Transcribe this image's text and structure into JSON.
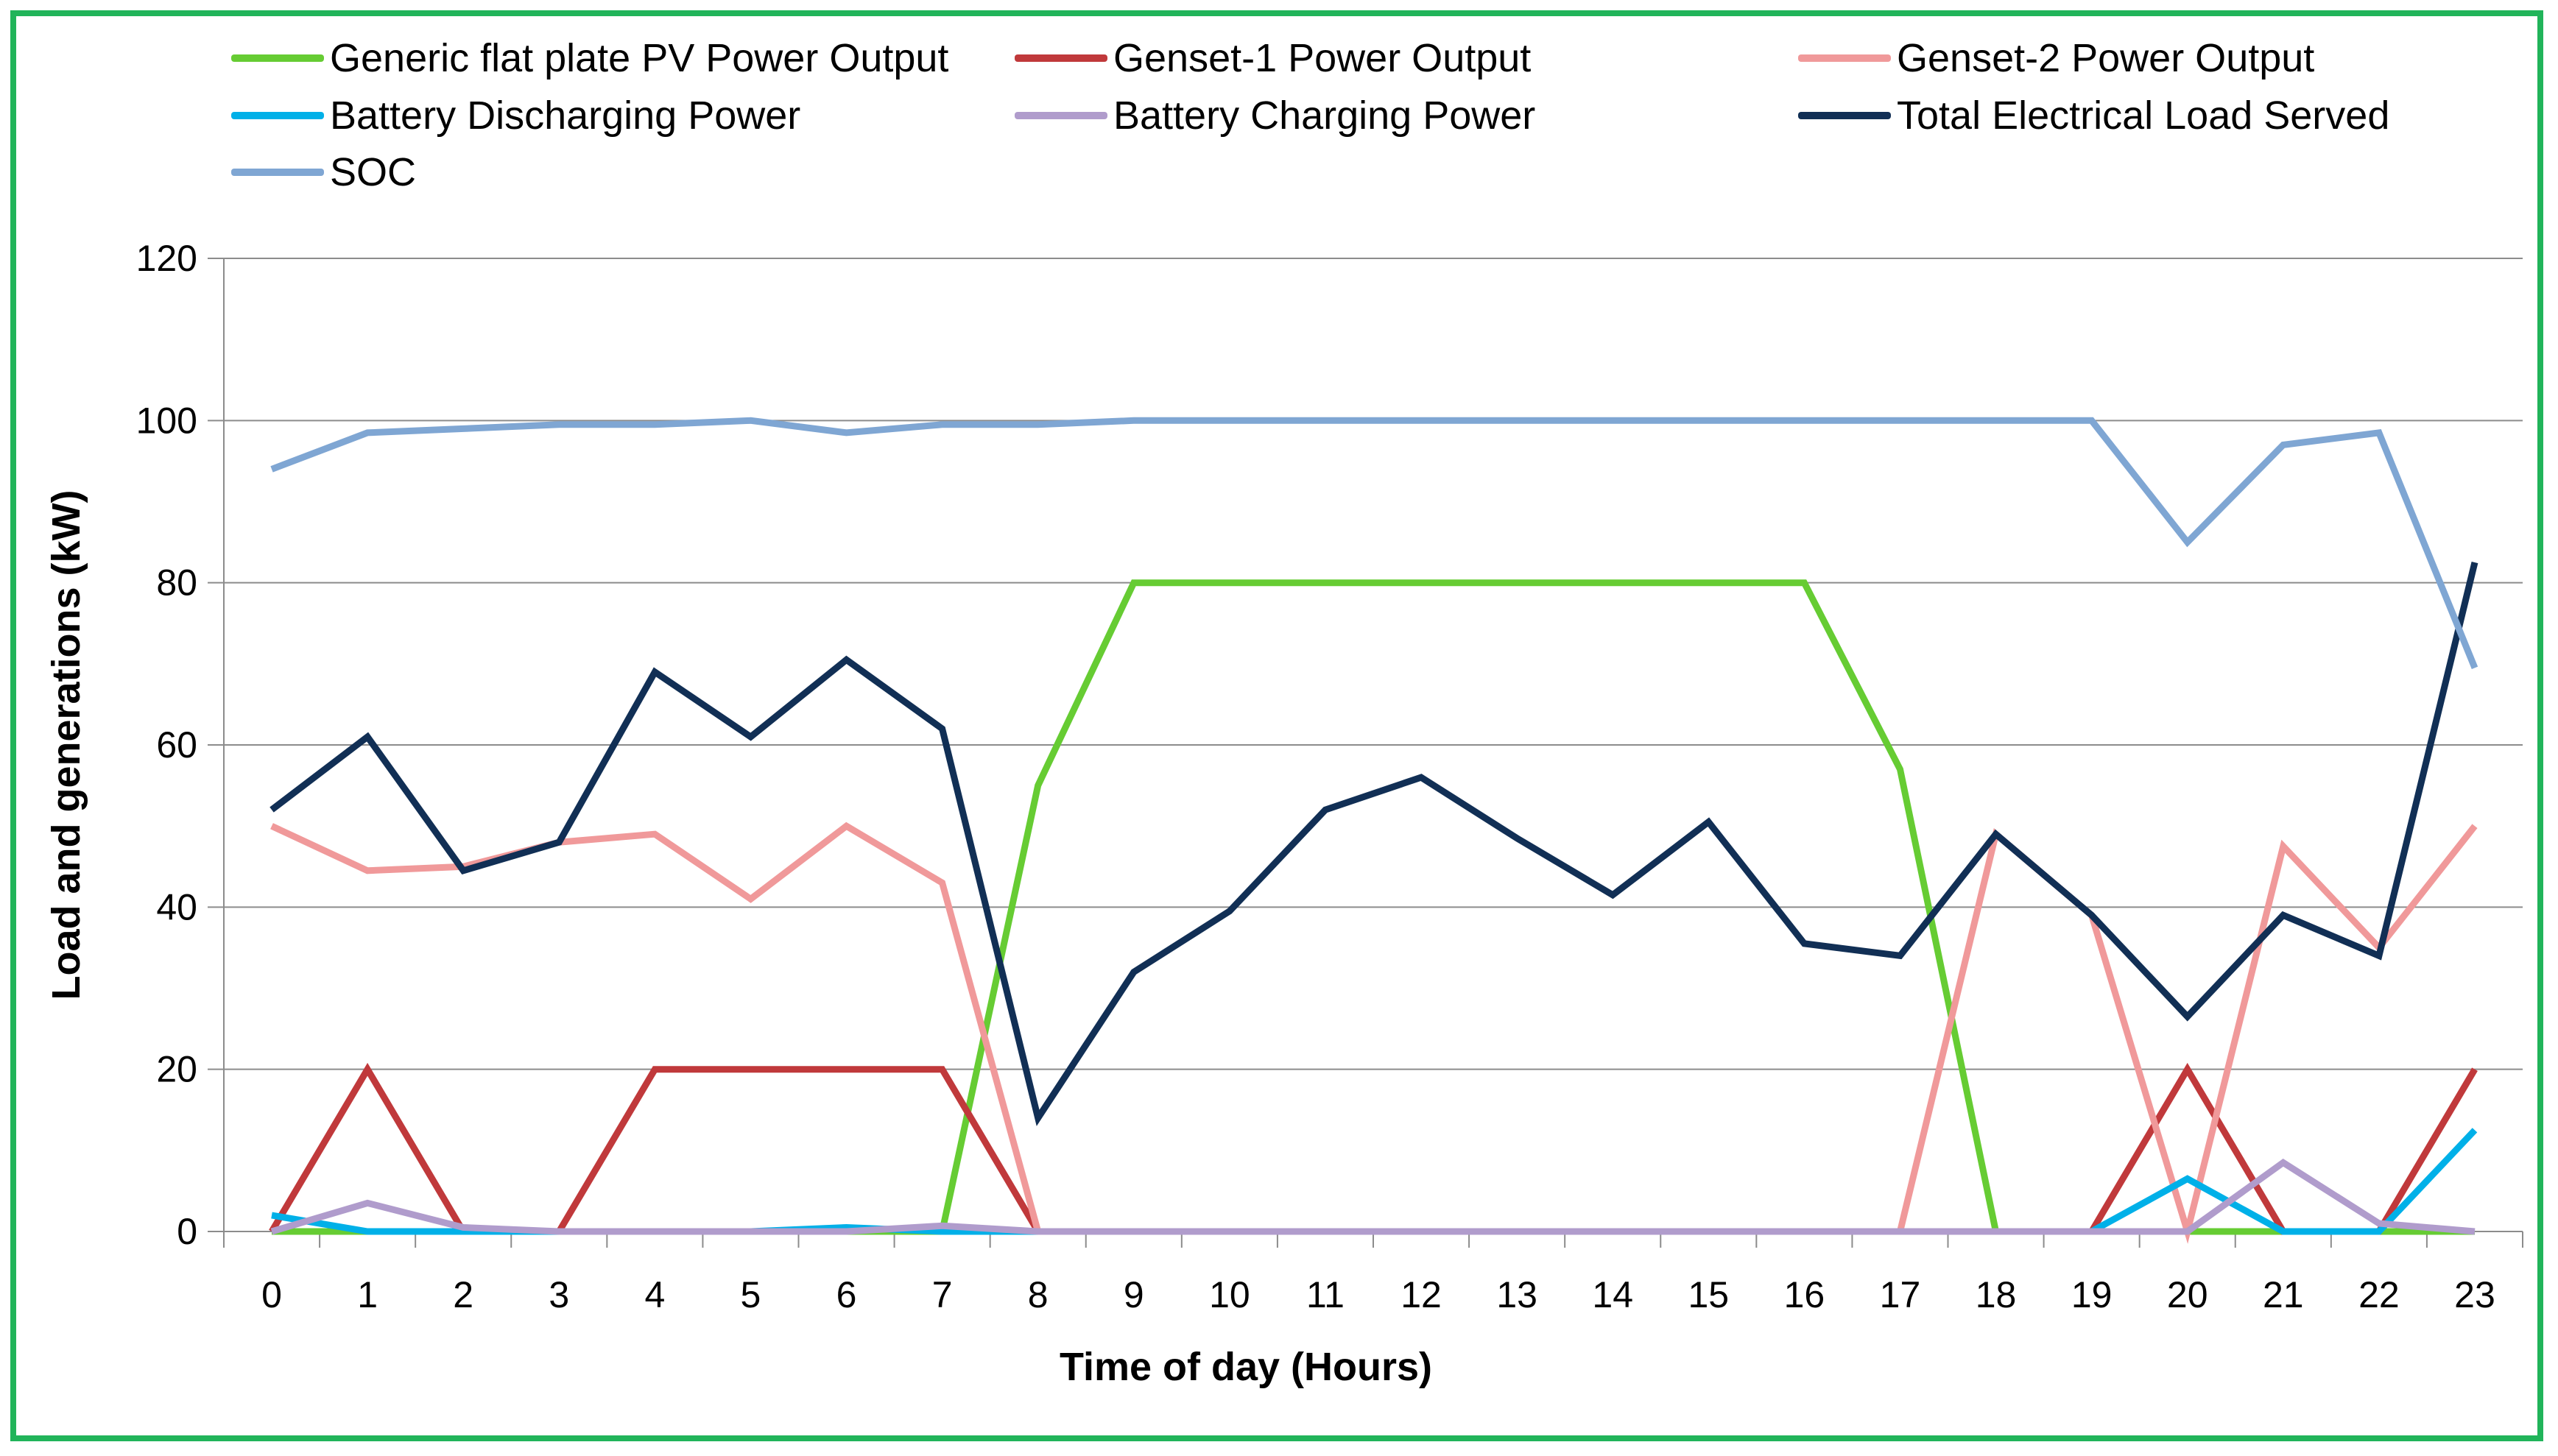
{
  "chart_data": {
    "type": "line",
    "title": "",
    "xlabel": "Time of day (Hours)",
    "ylabel": "Load and generations (kW)",
    "xlim": [
      0,
      23
    ],
    "ylim": [
      0,
      120
    ],
    "y_ticks": [
      0,
      20,
      40,
      60,
      80,
      100,
      120
    ],
    "y_tick_labels": [
      "0",
      "20",
      "40",
      "60",
      "80",
      "100",
      "120"
    ],
    "categories": [
      "0",
      "1",
      "2",
      "3",
      "4",
      "5",
      "6",
      "7",
      "8",
      "9",
      "10",
      "11",
      "12",
      "13",
      "14",
      "15",
      "16",
      "17",
      "18",
      "19",
      "20",
      "21",
      "22",
      "23"
    ],
    "grid": true,
    "legend_position": "top",
    "series": [
      {
        "name": "Generic flat plate PV Power Output",
        "color": "#66cc33",
        "values": [
          0,
          0,
          0,
          0,
          0,
          0,
          0,
          0,
          55,
          80,
          80,
          80,
          80,
          80,
          80,
          80,
          80,
          57,
          0,
          0,
          0,
          0,
          0,
          0
        ]
      },
      {
        "name": "Genset-1 Power Output",
        "color": "#c0393b",
        "values": [
          0,
          20,
          0,
          0,
          20,
          20,
          20,
          20,
          0,
          0,
          0,
          0,
          0,
          0,
          0,
          0,
          0,
          0,
          0,
          0,
          20,
          0,
          0,
          20
        ]
      },
      {
        "name": "Genset-2 Power Output",
        "color": "#f0999a",
        "values": [
          50,
          44.5,
          45,
          48,
          49,
          41,
          50,
          43,
          0,
          0,
          0,
          0,
          0,
          0,
          0,
          0,
          0,
          0,
          49,
          39,
          0,
          47.5,
          35,
          50
        ]
      },
      {
        "name": "Battery Discharging Power",
        "color": "#00b0e8",
        "values": [
          2,
          0,
          0,
          0,
          0,
          0,
          0.5,
          0,
          0,
          0,
          0,
          0,
          0,
          0,
          0,
          0,
          0,
          0,
          0,
          0,
          6.5,
          0,
          0,
          12.5
        ]
      },
      {
        "name": "Battery Charging Power",
        "color": "#b09ccc",
        "values": [
          0,
          3.5,
          0.5,
          0,
          0,
          0,
          0,
          0.7,
          0,
          0,
          0,
          0,
          0,
          0,
          0,
          0,
          0,
          0,
          0,
          0,
          0,
          8.5,
          1,
          0
        ]
      },
      {
        "name": "Total Electrical Load Served",
        "color": "#112f55",
        "values": [
          52,
          61,
          44.5,
          48,
          69,
          61,
          70.5,
          62,
          14,
          32,
          39.5,
          52,
          56,
          48.5,
          41.5,
          50.5,
          35.5,
          34,
          49,
          39,
          26.5,
          39,
          34,
          82.5
        ]
      },
      {
        "name": "SOC",
        "color": "#7fa6d3",
        "values": [
          94,
          98.5,
          99,
          99.5,
          99.5,
          100,
          98.5,
          99.5,
          99.5,
          100,
          100,
          100,
          100,
          100,
          100,
          100,
          100,
          100,
          100,
          100,
          85,
          97,
          98.5,
          69.5
        ]
      }
    ]
  }
}
